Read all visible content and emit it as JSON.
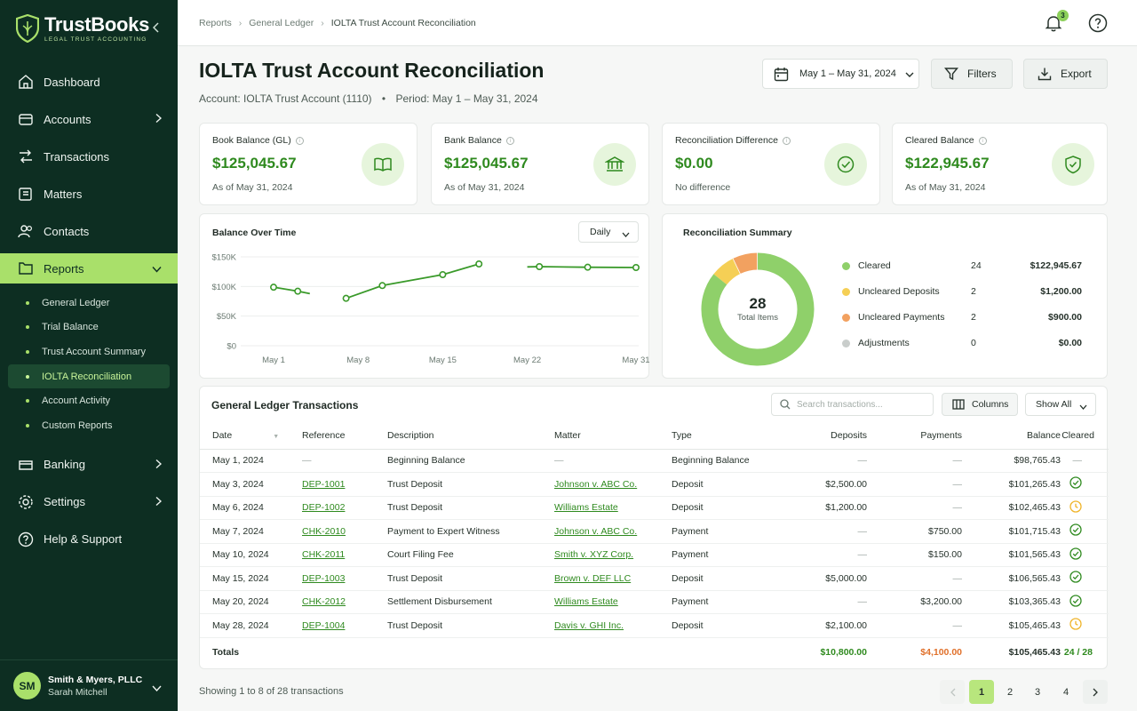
{
  "app": {
    "name": "TrustBooks",
    "tagline": "LEGAL TRUST ACCOUNTING"
  },
  "nav": {
    "items": [
      {
        "label": "Dashboard",
        "icon": "home-icon"
      },
      {
        "label": "Accounts",
        "icon": "bank-icon"
      },
      {
        "label": "Transactions",
        "icon": "transactions-icon"
      },
      {
        "label": "Matters",
        "icon": "briefcase-icon"
      },
      {
        "label": "Contacts",
        "icon": "users-icon"
      },
      {
        "label": "Reports",
        "icon": "reports-icon"
      }
    ],
    "sub_items": [
      "General Ledger",
      "Trial Balance",
      "Trust Account Summary",
      "IOLTA Reconciliation",
      "Account Activity",
      "Custom Reports"
    ],
    "bottom_items": [
      {
        "label": "Banking",
        "icon": "banking-icon"
      },
      {
        "label": "Settings",
        "icon": "gear-icon"
      },
      {
        "label": "Help & Support",
        "icon": "help-icon"
      }
    ]
  },
  "user": {
    "initials": "SM",
    "firm": "Smith & Myers, PLLC",
    "name": "Sarah Mitchell"
  },
  "breadcrumb": [
    "Reports",
    "General Ledger",
    "IOLTA Trust Account Reconciliation"
  ],
  "notifications": {
    "count": "3"
  },
  "page": {
    "title": "IOLTA Trust Account Reconciliation",
    "account": "Account: IOLTA Trust Account (1110)",
    "bullet": "•",
    "period": "Period: May 1 – May 31, 2024"
  },
  "toolbar": {
    "date_range": "May 1 – May 31, 2024",
    "filters": "Filters",
    "export": "Export"
  },
  "kpis": [
    {
      "label": "Book Balance (GL)",
      "value": "$125,045.67",
      "sub": "As of May 31, 2024",
      "icon": "book-icon"
    },
    {
      "label": "Bank Balance",
      "value": "$125,045.67",
      "sub": "As of May 31, 2024",
      "icon": "bank-building-icon"
    },
    {
      "label": "Reconciliation Difference",
      "value": "$0.00",
      "sub": "No difference",
      "icon": "check-circle-icon"
    },
    {
      "label": "Cleared Balance",
      "value": "$122,945.67",
      "sub": "As of May 31, 2024",
      "icon": "shield-check-icon"
    }
  ],
  "chart_data": [
    {
      "type": "line",
      "title": "Balance Over Time",
      "interval": "Daily",
      "x": [
        "May 1",
        "May 3",
        "May 6",
        "May 7",
        "May 10",
        "May 15",
        "May 20",
        "May 28",
        "May 31"
      ],
      "xticks": [
        "May 1",
        "May 8",
        "May 15",
        "May 22",
        "May 31"
      ],
      "yticks": [
        "$0",
        "$50K",
        "$100K",
        "$150K"
      ],
      "ylim": [
        0,
        150000
      ],
      "grid": true,
      "color": "#3a9a2a",
      "segments": [
        [
          {
            "d": 1,
            "v": 98765
          },
          {
            "d": 3,
            "v": 92000
          },
          {
            "d": 4,
            "v": 88000
          }
        ],
        [
          {
            "d": 7,
            "v": 80000
          },
          {
            "d": 10,
            "v": 101565
          },
          {
            "d": 15,
            "v": 120000
          },
          {
            "d": 18,
            "v": 138000
          }
        ],
        [
          {
            "d": 22,
            "v": 133000
          },
          {
            "d": 23,
            "v": 133500
          },
          {
            "d": 27,
            "v": 132500
          },
          {
            "d": 31,
            "v": 132000
          }
        ]
      ],
      "points": [
        {
          "d": 1,
          "v": 98765
        },
        {
          "d": 3,
          "v": 92000
        },
        {
          "d": 7,
          "v": 80000
        },
        {
          "d": 10,
          "v": 101565
        },
        {
          "d": 15,
          "v": 120000
        },
        {
          "d": 18,
          "v": 138000
        },
        {
          "d": 23,
          "v": 133500
        },
        {
          "d": 27,
          "v": 132500
        },
        {
          "d": 31,
          "v": 132000
        }
      ]
    },
    {
      "type": "pie",
      "title": "Reconciliation Summary",
      "center_value": "28",
      "center_label": "Total Items",
      "slices": [
        {
          "label": "Cleared",
          "count": "24",
          "amount": "$122,945.67",
          "value": 24,
          "color": "#8fd06a"
        },
        {
          "label": "Uncleared Deposits",
          "count": "2",
          "amount": "$1,200.00",
          "value": 2,
          "color": "#f5cf55"
        },
        {
          "label": "Uncleared Payments",
          "count": "2",
          "amount": "$900.00",
          "value": 2,
          "color": "#f2a160"
        },
        {
          "label": "Adjustments",
          "count": "0",
          "amount": "$0.00",
          "value": 0,
          "color": "#c9cdcb"
        }
      ]
    }
  ],
  "table": {
    "title": "General Ledger Transactions",
    "search_placeholder": "Search transactions...",
    "columns_label": "Columns",
    "show_all": "Show All",
    "headers": [
      "Date",
      "Reference",
      "Description",
      "Matter",
      "Type",
      "Deposits",
      "Payments",
      "Balance",
      "Cleared"
    ],
    "rows": [
      {
        "date": "May 1, 2024",
        "ref": "—",
        "desc": "Beginning Balance",
        "matter": "—",
        "type": "Beginning Balance",
        "dep": "—",
        "pay": "—",
        "bal": "$98,765.43",
        "cleared": "dash"
      },
      {
        "date": "May 3, 2024",
        "ref": "DEP-1001",
        "desc": "Trust Deposit",
        "matter": "Johnson v. ABC Co.",
        "type": "Deposit",
        "dep": "$2,500.00",
        "pay": "—",
        "bal": "$101,265.43",
        "cleared": "check"
      },
      {
        "date": "May 6, 2024",
        "ref": "DEP-1002",
        "desc": "Trust Deposit",
        "matter": "Williams Estate",
        "type": "Deposit",
        "dep": "$1,200.00",
        "pay": "—",
        "bal": "$102,465.43",
        "cleared": "pending"
      },
      {
        "date": "May 7, 2024",
        "ref": "CHK-2010",
        "desc": "Payment to Expert Witness",
        "matter": "Johnson v. ABC Co.",
        "type": "Payment",
        "dep": "—",
        "pay": "$750.00",
        "bal": "$101,715.43",
        "cleared": "check"
      },
      {
        "date": "May 10, 2024",
        "ref": "CHK-2011",
        "desc": "Court Filing Fee",
        "matter": "Smith v. XYZ Corp.",
        "type": "Payment",
        "dep": "—",
        "pay": "$150.00",
        "bal": "$101,565.43",
        "cleared": "check"
      },
      {
        "date": "May 15, 2024",
        "ref": "DEP-1003",
        "desc": "Trust Deposit",
        "matter": "Brown v. DEF LLC",
        "type": "Deposit",
        "dep": "$5,000.00",
        "pay": "—",
        "bal": "$106,565.43",
        "cleared": "check"
      },
      {
        "date": "May 20, 2024",
        "ref": "CHK-2012",
        "desc": "Settlement Disbursement",
        "matter": "Williams Estate",
        "type": "Payment",
        "dep": "—",
        "pay": "$3,200.00",
        "bal": "$103,365.43",
        "cleared": "check"
      },
      {
        "date": "May 28, 2024",
        "ref": "DEP-1004",
        "desc": "Trust Deposit",
        "matter": "Davis v. GHI Inc.",
        "type": "Deposit",
        "dep": "$2,100.00",
        "pay": "—",
        "bal": "$105,465.43",
        "cleared": "pending"
      }
    ],
    "totals": {
      "label": "Totals",
      "dep": "$10,800.00",
      "pay": "$4,100.00",
      "bal": "$105,465.43",
      "cleared": "24 / 28"
    }
  },
  "footer": {
    "showing": "Showing 1 to 8 of 28 transactions",
    "pages": [
      "1",
      "2",
      "3",
      "4"
    ],
    "current_page": "1"
  },
  "colors": {
    "sidebar": "#0d2e22",
    "accent": "#a9e06a",
    "money_green": "#2f8a1f",
    "payments_orange": "#e0702a",
    "pending_yellow": "#f0b429"
  }
}
